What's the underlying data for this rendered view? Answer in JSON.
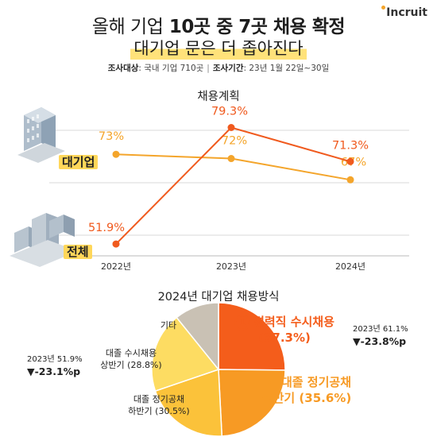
{
  "brand": {
    "logo_text": "Incruit"
  },
  "title": {
    "line1_a": "올해 기업",
    "line1_b": "10곳 중 7곳 채용 확정",
    "line2": "대기업 문은 더 좁아진다"
  },
  "survey": {
    "target_label": "조사대상",
    "target_value": ": 국내 기업 710곳",
    "period_label": "조사기간",
    "period_value": ": 23년 1월 22일~30일"
  },
  "colors": {
    "overall": "#f05a1e",
    "large": "#f4a52b",
    "grid": "#d8d8d8"
  },
  "chart_data": [
    {
      "type": "line",
      "title": "채용계획",
      "x": [
        "2022년",
        "2023년",
        "2024년"
      ],
      "ylim": [
        45,
        85
      ],
      "grid": true,
      "series": [
        {
          "name": "대기업",
          "values": [
            73,
            72,
            67
          ],
          "labels": [
            "73%",
            "72%",
            "67%"
          ],
          "color": "#f4a52b"
        },
        {
          "name": "전체",
          "values": [
            51.9,
            79.3,
            71.3
          ],
          "labels": [
            "51.9%",
            "79.3%",
            "71.3%"
          ],
          "color": "#f05a1e"
        }
      ]
    },
    {
      "type": "pie",
      "title": "2024년 대기업 채용방식",
      "slices": [
        {
          "label": "경력직 수시채용",
          "value": 37.3,
          "value_label": "(37.3%)",
          "number": "1",
          "color": "#f45d1b"
        },
        {
          "label": "대졸 정기공채 상반기",
          "value": 35.6,
          "value_label": "(35.6%)",
          "number": "2",
          "color": "#f79a24"
        },
        {
          "label": "대졸 정기공채 하반기",
          "value": 30.5,
          "value_label": "(30.5%)",
          "color": "#fbc23a"
        },
        {
          "label": "대졸 수시채용 상반기",
          "value": 28.8,
          "value_label": "(28.8%)",
          "color": "#fddc62"
        },
        {
          "label": "기타",
          "value": 16,
          "value_label": "",
          "color": "#c9c1b4"
        }
      ],
      "labels": {
        "s1_a": "경력직 수시채용",
        "s1_b": "(37.3%)",
        "s2_a": "대졸 정기공채",
        "s2_b": "상반기 (35.6%)",
        "s3_a": "대졸 정기공채",
        "s3_b": "하반기 (30.5%)",
        "s4_a": "대졸 수시채용",
        "s4_b": "상반기 (28.8%)",
        "s5": "기타"
      },
      "notes": [
        {
          "small": "2023년 61.1%",
          "big": "▼-23.8%p"
        },
        {
          "small": "2023년 51.9%",
          "big": "▼-23.1%p"
        }
      ]
    }
  ]
}
